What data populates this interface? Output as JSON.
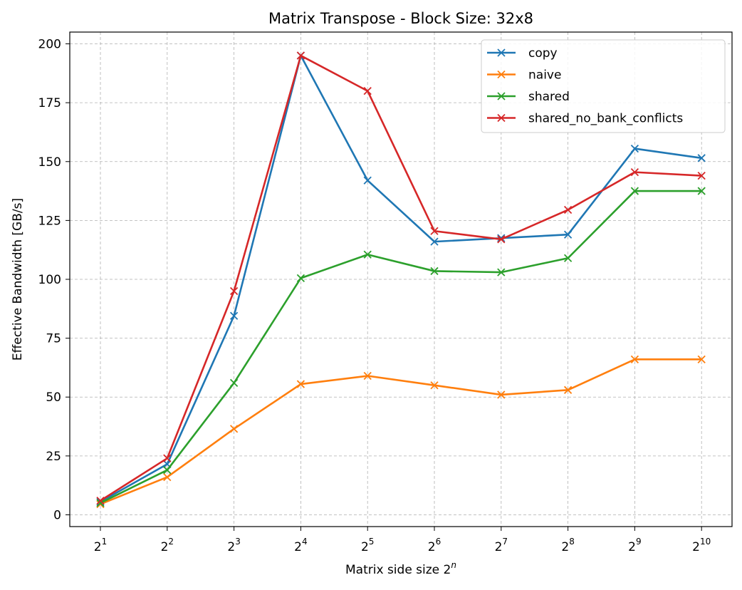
{
  "chart_data": {
    "type": "line",
    "title": "Matrix Transpose - Block Size: 32x8",
    "xlabel": "Matrix side size 2",
    "xlabel_superscript": "n",
    "ylabel": "Effective Bandwidth [GB/s]",
    "x_exponents": [
      1,
      2,
      3,
      4,
      5,
      6,
      7,
      8,
      9,
      10
    ],
    "x_tick_base": "2",
    "y_ticks": [
      0,
      25,
      50,
      75,
      100,
      125,
      150,
      175,
      200
    ],
    "ylim": [
      -5,
      205
    ],
    "grid": true,
    "legend_position": "top-right",
    "marker": "x",
    "series": [
      {
        "name": "copy",
        "color": "#1f77b4",
        "values": [
          5.5,
          21.5,
          84.5,
          195.0,
          142.0,
          116.0,
          117.5,
          119.0,
          155.5,
          151.5
        ]
      },
      {
        "name": "naive",
        "color": "#ff7f0e",
        "values": [
          4.5,
          16.0,
          36.5,
          55.5,
          59.0,
          55.0,
          51.0,
          53.0,
          66.0,
          66.0
        ]
      },
      {
        "name": "shared",
        "color": "#2ca02c",
        "values": [
          5.0,
          19.0,
          56.0,
          100.5,
          110.5,
          103.5,
          103.0,
          109.0,
          137.5,
          137.5
        ]
      },
      {
        "name": "shared_no_bank_conflicts",
        "color": "#d62728",
        "values": [
          6.0,
          24.0,
          95.0,
          195.0,
          180.0,
          120.5,
          117.0,
          129.5,
          145.5,
          144.0
        ]
      }
    ]
  }
}
